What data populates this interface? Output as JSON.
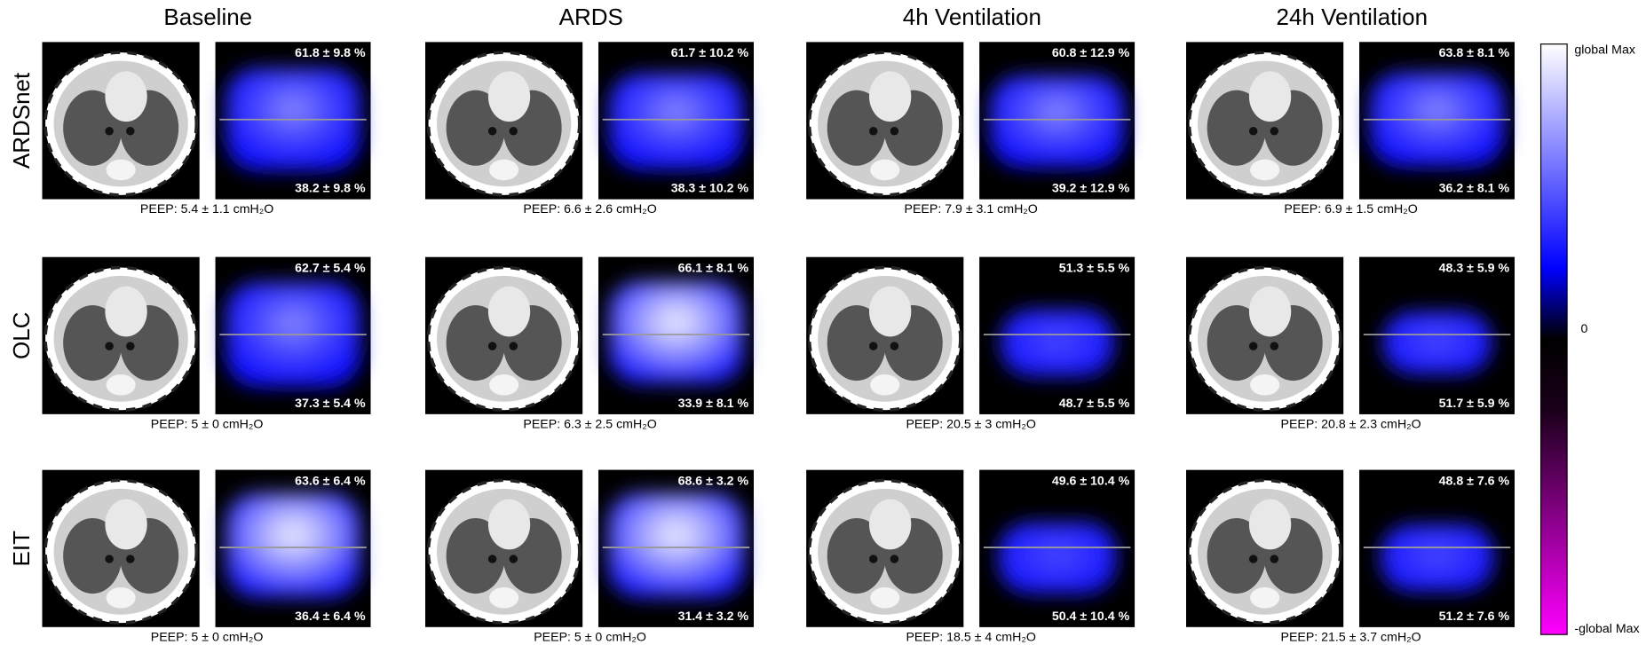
{
  "columns": [
    "Baseline",
    "ARDS",
    "4h Ventilation",
    "24h Ventilation"
  ],
  "rows": [
    {
      "label": "ARDSnet",
      "panels": [
        {
          "top": "61.8 ± 9.8 %",
          "bottom": "38.2 ± 9.8 %",
          "peep": "PEEP: 5.4 ± 1.1 cmH₂O"
        },
        {
          "top": "61.7 ± 10.2 %",
          "bottom": "38.3 ± 10.2 %",
          "peep": "PEEP: 6.6 ± 2.6 cmH₂O"
        },
        {
          "top": "60.8 ± 12.9 %",
          "bottom": "39.2 ± 12.9 %",
          "peep": "PEEP: 7.9 ± 3.1 cmH₂O"
        },
        {
          "top": "63.8 ± 8.1 %",
          "bottom": "36.2 ± 8.1 %",
          "peep": "PEEP: 6.9 ± 1.5 cmH₂O"
        }
      ]
    },
    {
      "label": "OLC",
      "panels": [
        {
          "top": "62.7 ± 5.4 %",
          "bottom": "37.3 ± 5.4 %",
          "peep": "PEEP: 5 ± 0 cmH₂O"
        },
        {
          "top": "66.1 ± 8.1 %",
          "bottom": "33.9 ± 8.1 %",
          "peep": "PEEP: 6.3 ± 2.5 cmH₂O"
        },
        {
          "top": "51.3 ± 5.5 %",
          "bottom": "48.7 ± 5.5 %",
          "peep": "PEEP: 20.5 ± 3 cmH₂O"
        },
        {
          "top": "48.3 ± 5.9 %",
          "bottom": "51.7 ± 5.9 %",
          "peep": "PEEP: 20.8 ± 2.3 cmH₂O"
        }
      ]
    },
    {
      "label": "EIT",
      "panels": [
        {
          "top": "63.6 ± 6.4 %",
          "bottom": "36.4 ± 6.4 %",
          "peep": "PEEP: 5 ± 0 cmH₂O"
        },
        {
          "top": "68.6 ± 3.2 %",
          "bottom": "31.4 ± 3.2 %",
          "peep": "PEEP: 5 ± 0 cmH₂O"
        },
        {
          "top": "49.6 ± 10.4 %",
          "bottom": "50.4 ± 10.4 %",
          "peep": "PEEP: 18.5 ± 4 cmH₂O"
        },
        {
          "top": "48.8 ± 7.6 %",
          "bottom": "51.2 ± 7.6 %",
          "peep": "PEEP: 21.5 ± 3.7 cmH₂O"
        }
      ]
    }
  ],
  "colorbar": {
    "max": "global Max",
    "zero": "0",
    "min": "-global Max"
  }
}
